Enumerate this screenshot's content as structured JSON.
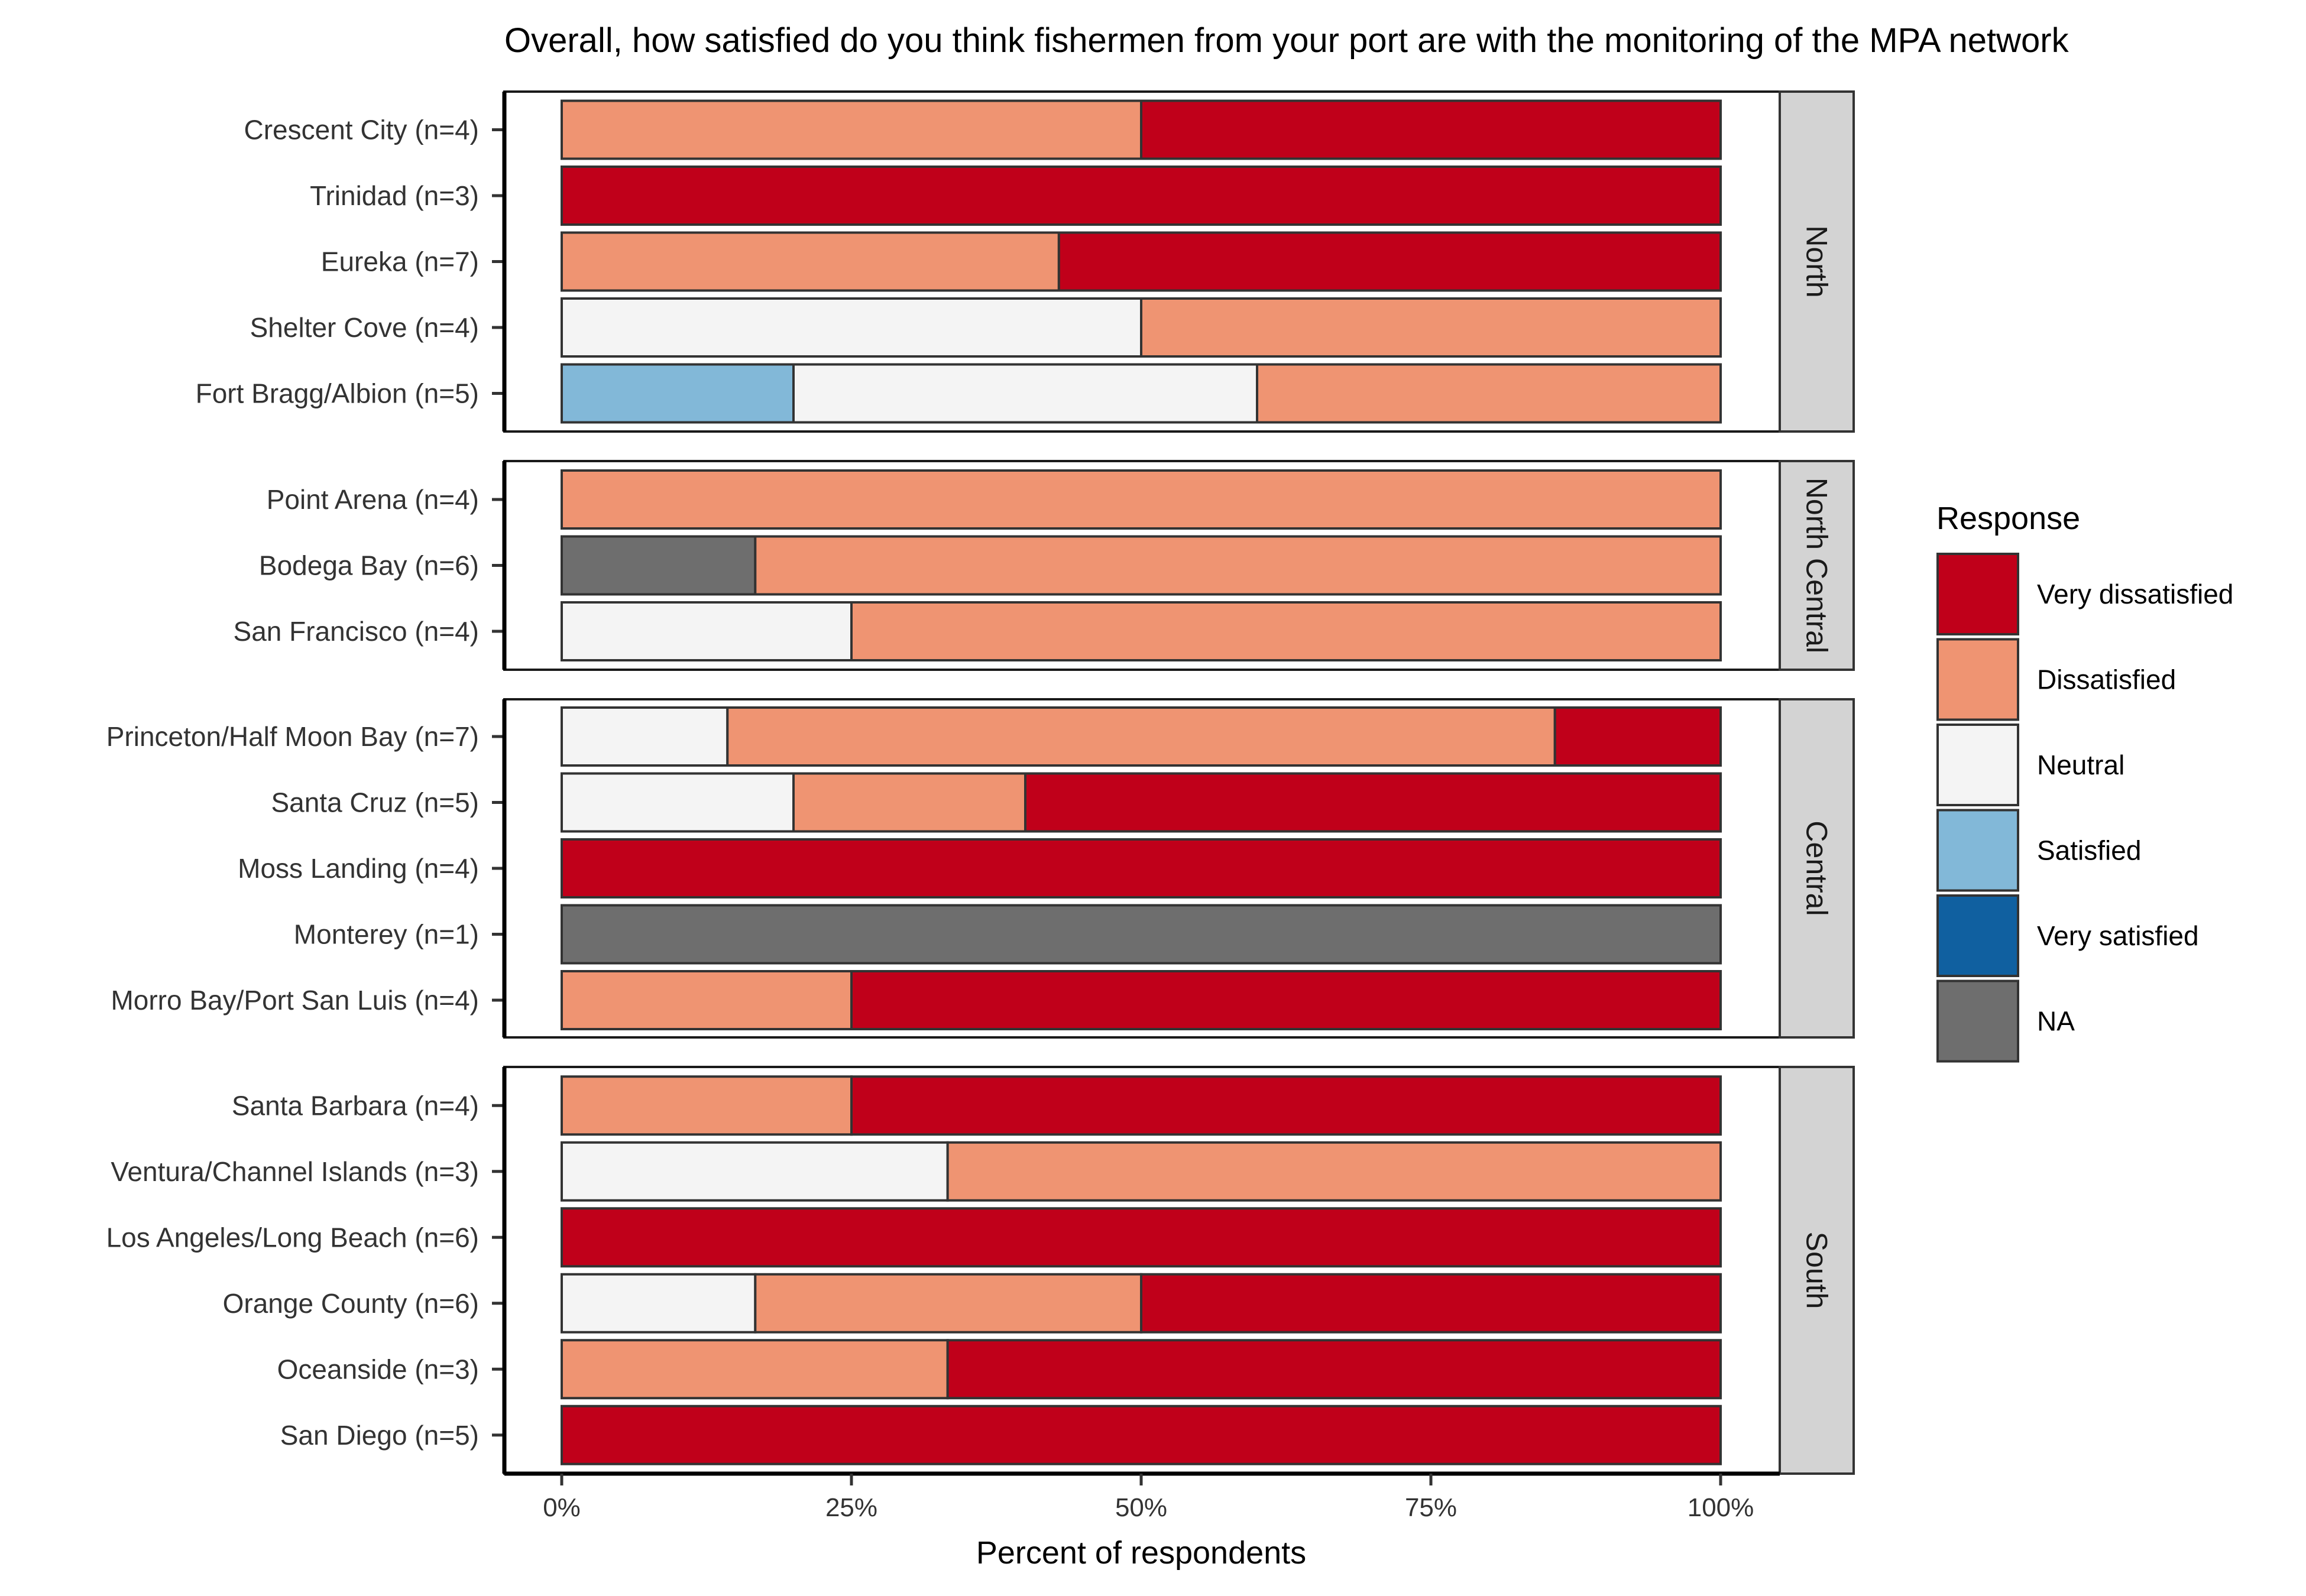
{
  "chart_data": {
    "type": "bar",
    "stacked": "percent",
    "orientation": "horizontal",
    "title": "Overall, how satisfied do you think fishermen from your port are with the monitoring of the MPA network",
    "xlabel": "Percent of respondents",
    "ylabel": "",
    "xlim": [
      0,
      100
    ],
    "x_ticks": [
      "0%",
      "25%",
      "50%",
      "75%",
      "100%"
    ],
    "grid": false,
    "legend": {
      "title": "Response",
      "position": "right",
      "items": [
        {
          "label": "Very dissatisfied",
          "color": "#ca0020"
        },
        {
          "label": "Dissatisfied",
          "color": "#f4a582"
        },
        {
          "label": "Neutral",
          "color": "#f7f7f7"
        },
        {
          "label": "Satisfied",
          "color": "#92c5de"
        },
        {
          "label": "Very satisfied",
          "color": "#0571b0"
        },
        {
          "label": "NA",
          "color": "#6e6e6e"
        }
      ]
    },
    "colors": {
      "Very dissatisfied": "#c0001a",
      "Dissatisfied": "#ef9472",
      "Neutral": "#f4f4f4",
      "Satisfied": "#82b8d8",
      "Very satisfied": "#1060a0",
      "NA": "#6e6e6e"
    },
    "series_order": [
      "Satisfied",
      "NA",
      "Neutral",
      "Dissatisfied",
      "Very dissatisfied"
    ],
    "panels": [
      {
        "name": "North",
        "categories": [
          {
            "label": "Crescent City (n=4)",
            "values": {
              "Dissatisfied": 50,
              "Very dissatisfied": 50
            }
          },
          {
            "label": "Trinidad (n=3)",
            "values": {
              "Very dissatisfied": 100
            }
          },
          {
            "label": "Eureka (n=7)",
            "values": {
              "Dissatisfied": 42.9,
              "Very dissatisfied": 57.1
            }
          },
          {
            "label": "Shelter Cove (n=4)",
            "values": {
              "Neutral": 50,
              "Dissatisfied": 50
            }
          },
          {
            "label": "Fort Bragg/Albion (n=5)",
            "values": {
              "Satisfied": 20,
              "Neutral": 40,
              "Dissatisfied": 40
            }
          }
        ]
      },
      {
        "name": "North Central",
        "categories": [
          {
            "label": "Point Arena (n=4)",
            "values": {
              "Dissatisfied": 100
            }
          },
          {
            "label": "Bodega Bay (n=6)",
            "values": {
              "NA": 16.7,
              "Dissatisfied": 83.3
            }
          },
          {
            "label": "San Francisco (n=4)",
            "values": {
              "Neutral": 25,
              "Dissatisfied": 75
            }
          }
        ]
      },
      {
        "name": "Central",
        "categories": [
          {
            "label": "Princeton/Half Moon Bay (n=7)",
            "values": {
              "Neutral": 14.3,
              "Dissatisfied": 71.4,
              "Very dissatisfied": 14.3
            }
          },
          {
            "label": "Santa Cruz (n=5)",
            "values": {
              "Neutral": 20,
              "Dissatisfied": 20,
              "Very dissatisfied": 60
            }
          },
          {
            "label": "Moss Landing (n=4)",
            "values": {
              "Very dissatisfied": 100
            }
          },
          {
            "label": "Monterey (n=1)",
            "values": {
              "NA": 100
            }
          },
          {
            "label": "Morro Bay/Port San Luis (n=4)",
            "values": {
              "Dissatisfied": 25,
              "Very dissatisfied": 75
            }
          }
        ]
      },
      {
        "name": "South",
        "categories": [
          {
            "label": "Santa Barbara (n=4)",
            "values": {
              "Dissatisfied": 25,
              "Very dissatisfied": 75
            }
          },
          {
            "label": "Ventura/Channel Islands (n=3)",
            "values": {
              "Neutral": 33.3,
              "Dissatisfied": 66.7
            }
          },
          {
            "label": "Los Angeles/Long Beach (n=6)",
            "values": {
              "Very dissatisfied": 100
            }
          },
          {
            "label": "Orange County (n=6)",
            "values": {
              "Neutral": 16.7,
              "Dissatisfied": 33.3,
              "Very dissatisfied": 50
            }
          },
          {
            "label": "Oceanside (n=3)",
            "values": {
              "Dissatisfied": 33.3,
              "Very dissatisfied": 66.7
            }
          },
          {
            "label": "San Diego (n=5)",
            "values": {
              "Very dissatisfied": 100
            }
          }
        ]
      }
    ]
  }
}
